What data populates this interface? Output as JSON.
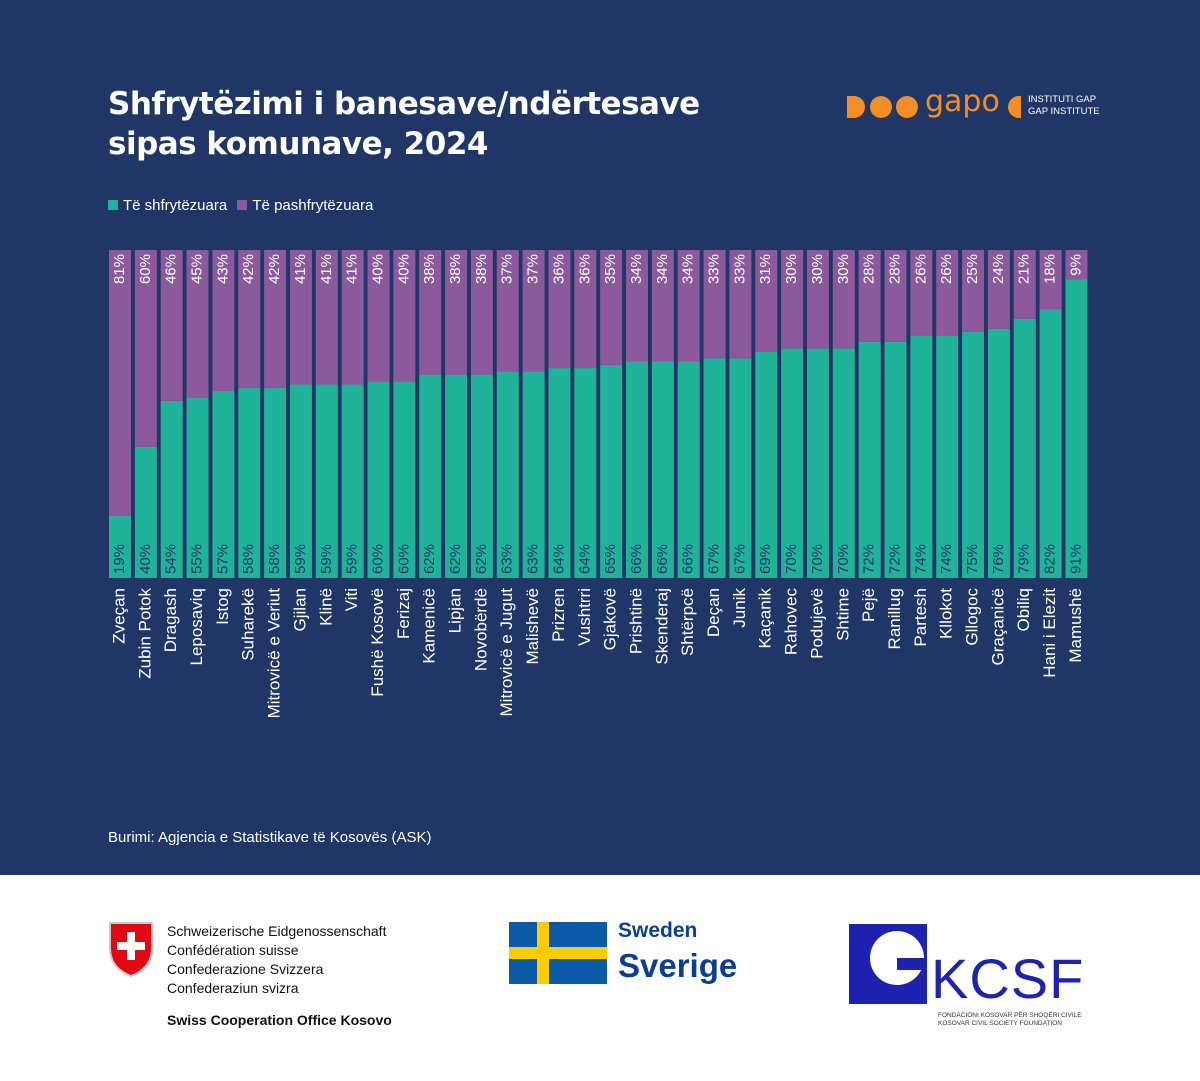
{
  "title": {
    "line1": "Shfrytëzimi i banesave/ndërtesave",
    "line2": "sipas komunave, 2024"
  },
  "branding": {
    "gap_word": "gapo",
    "gap_line1": "INSTITUTI GAP",
    "gap_line2": "GAP INSTITUTE",
    "orange": "#f28e23"
  },
  "source": "Burimi: Agjencia e Statistikave të Kosovës (ASK)",
  "colors": {
    "background": "#1f3666",
    "used": "#1fb39a",
    "unused": "#8c5a9c"
  },
  "chart_data": {
    "type": "bar",
    "stacked": true,
    "percent": true,
    "ylim": [
      0,
      100
    ],
    "legend": "top-left",
    "grid": false,
    "categories": [
      "Zveçan",
      "Zubin Potok",
      "Dragash",
      "Leposaviq",
      "Istog",
      "Suharekë",
      "Mitrovicë e Veriut",
      "Gjilan",
      "Klinë",
      "Viti",
      "Fushë Kosovë",
      "Ferizaj",
      "Kamenicë",
      "Lipjan",
      "Novobërdë",
      "Mitrovicë e Jugut",
      "Malishevë",
      "Prizren",
      "Vushtrri",
      "Gjakovë",
      "Prishtinë",
      "Skenderaj",
      "Shtërpcë",
      "Deçan",
      "Junik",
      "Kaçanik",
      "Rahovec",
      "Podujevë",
      "Shtime",
      "Pejë",
      "Ranillug",
      "Partesh",
      "Kllokot",
      "Gllogoc",
      "Graçanicë",
      "Obiliq",
      "Hani i Elezit",
      "Mamushë"
    ],
    "series": [
      {
        "name": "Të shfrytëzuara",
        "values": [
          19,
          40,
          54,
          55,
          57,
          58,
          58,
          59,
          59,
          59,
          60,
          60,
          62,
          62,
          62,
          63,
          63,
          64,
          64,
          65,
          66,
          66,
          66,
          67,
          67,
          69,
          70,
          70,
          70,
          72,
          72,
          74,
          74,
          75,
          76,
          79,
          82,
          91
        ],
        "labels": [
          "19%",
          "40%",
          "54%",
          "55%",
          "57%",
          "58%",
          "58%",
          "59%",
          "59%",
          "59%",
          "60%",
          "60%",
          "62%",
          "62%",
          "62%",
          "63%",
          "63%",
          "64%",
          "64%",
          "65%",
          "66%",
          "66%",
          "66%",
          "67%",
          "67%",
          "69%",
          "70%",
          "70%",
          "70%",
          "72%",
          "72%",
          "74%",
          "74%",
          "75%",
          "76%",
          "79%",
          "82%",
          "91%"
        ]
      },
      {
        "name": "Të pashfrytëzuara",
        "values": [
          81,
          60,
          46,
          45,
          43,
          42,
          42,
          41,
          41,
          41,
          40,
          40,
          38,
          38,
          38,
          37,
          37,
          36,
          36,
          35,
          34,
          34,
          34,
          33,
          33,
          31,
          30,
          30,
          30,
          28,
          28,
          26,
          26,
          25,
          24,
          21,
          18,
          9
        ],
        "labels": [
          "81%",
          "60%",
          "46%",
          "45%",
          "43%",
          "42%",
          "42%",
          "41%",
          "41%",
          "41%",
          "40%",
          "40%",
          "38%",
          "38%",
          "38%",
          "37%",
          "37%",
          "36%",
          "36%",
          "35%",
          "34%",
          "34%",
          "34%",
          "33%",
          "33%",
          "31%",
          "30%",
          "30%",
          "30%",
          "28%",
          "28%",
          "26%",
          "26%",
          "25%",
          "24%",
          "21%",
          "18%",
          "9%"
        ]
      }
    ]
  },
  "footer": {
    "swiss_lines": [
      "Schweizerische Eidgenossenschaft",
      "Confédération suisse",
      "Confederazione Svizzera",
      "Confederaziun svizra"
    ],
    "swiss_office": "Swiss Cooperation Office Kosovo",
    "sweden_en": "Sweden",
    "sweden_sv": "Sverige",
    "kcsf_word": "KCSF",
    "kcsf_sub1": "FONDACIONI KOSOVAR PËR SHOQËRI CIVILE",
    "kcsf_sub2": "KOSOVAR CIVIL SOCIETY FOUNDATION"
  }
}
